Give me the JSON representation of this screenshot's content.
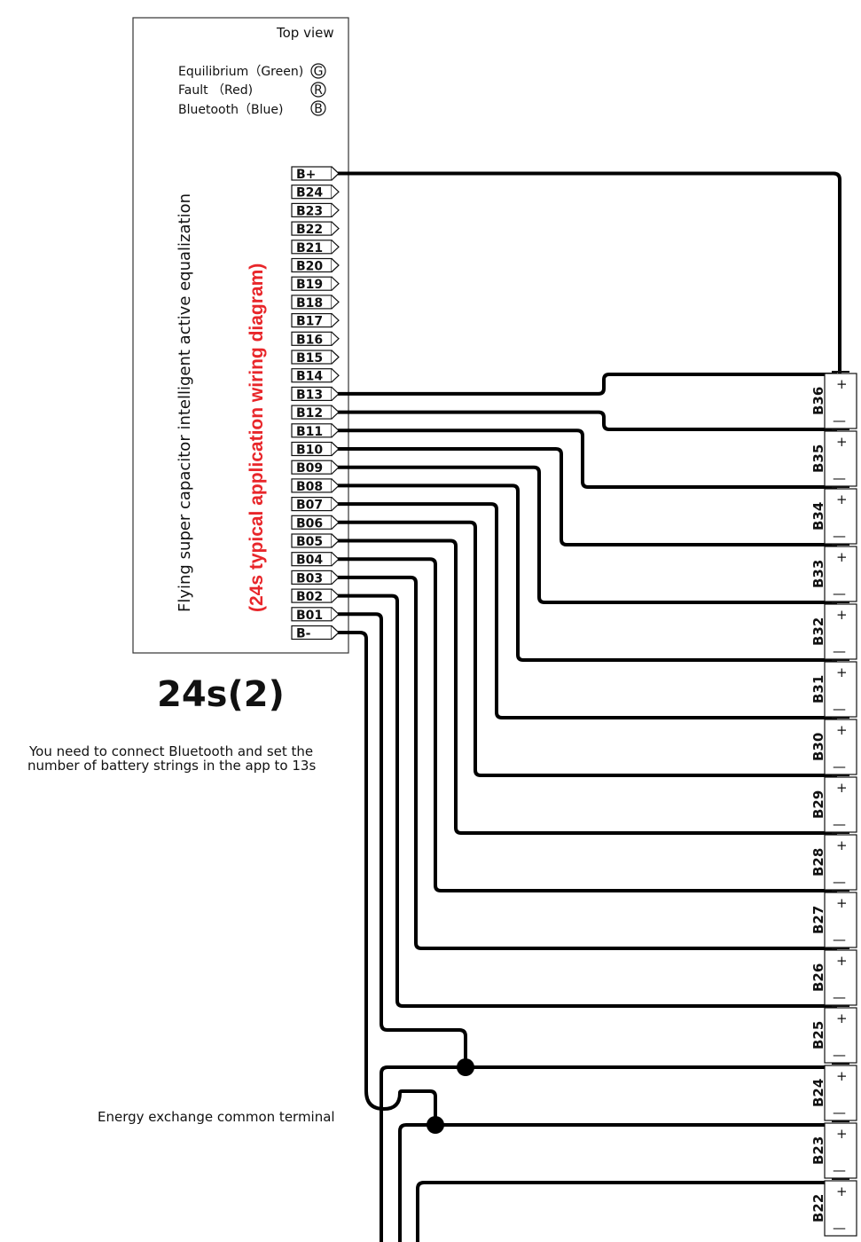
{
  "diagram": {
    "top_view_label": "Top view",
    "legend": [
      {
        "label": "Equilibrium（Green)",
        "symbol": "G"
      },
      {
        "label": "Fault （Red)",
        "symbol": "R"
      },
      {
        "label": "Bluetooth（Blue)",
        "symbol": "B"
      }
    ],
    "device_title": "Flying super capacitor intelligent active equalization",
    "red_title": "(24s typical application wiring diagram)",
    "model_label": "24s(2)",
    "note_line1": "You need to connect Bluetooth and set the",
    "note_line2": "number of battery strings in the app to 13s",
    "common_terminal_label": "Energy exchange common terminal",
    "pins": [
      "B+",
      "B24",
      "B23",
      "B22",
      "B21",
      "B20",
      "B19",
      "B18",
      "B17",
      "B16",
      "B15",
      "B14",
      "B13",
      "B12",
      "B11",
      "B10",
      "B09",
      "B08",
      "B07",
      "B06",
      "B05",
      "B04",
      "B03",
      "B02",
      "B01",
      "B-"
    ],
    "batteries": [
      "B36",
      "B35",
      "B34",
      "B33",
      "B32",
      "B31",
      "B30",
      "B29",
      "B28",
      "B27",
      "B26",
      "B25",
      "B24",
      "B23",
      "B22"
    ],
    "plus_symbol": "+",
    "minus_symbol": "—",
    "colors": {
      "accent_red": "#e8262a",
      "line": "#000000"
    }
  }
}
